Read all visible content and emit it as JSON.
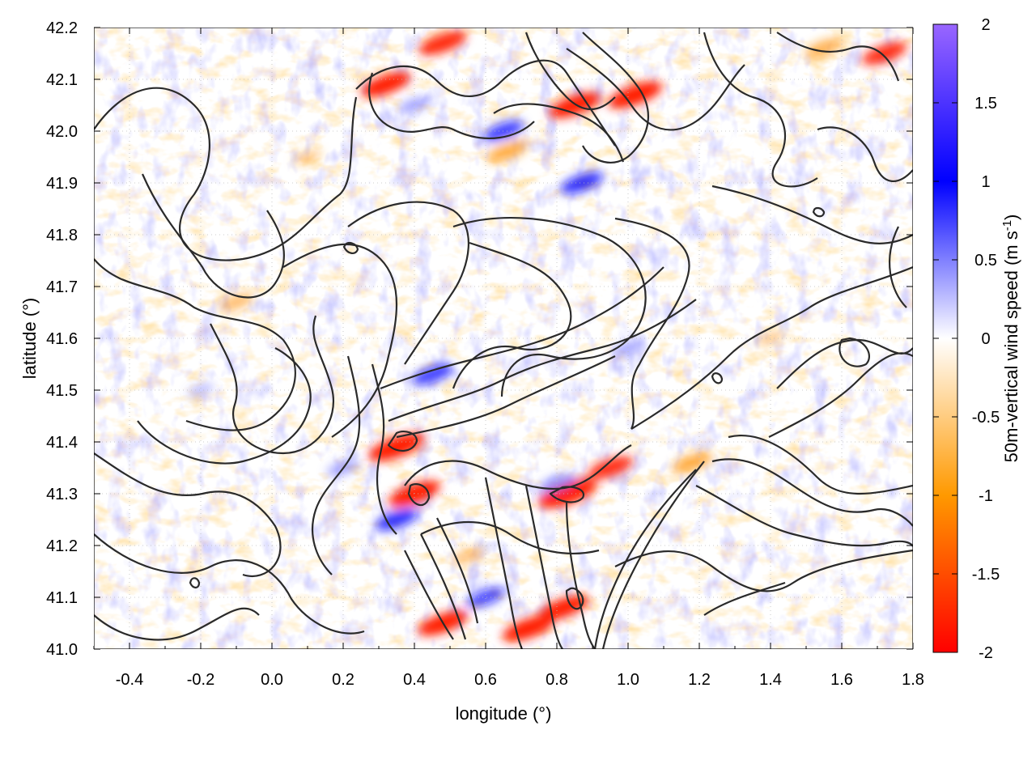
{
  "chart_data": {
    "type": "heatmap",
    "title": "",
    "xlabel": "longitude (°)",
    "ylabel": "latitude (°)",
    "xlim": [
      -0.5,
      1.8
    ],
    "ylim": [
      41.0,
      42.2
    ],
    "xticks": [
      "-0.4",
      "-0.2",
      "0.0",
      "0.2",
      "0.4",
      "0.6",
      "0.8",
      "1.0",
      "1.2",
      "1.4",
      "1.6",
      "1.8"
    ],
    "yticks": [
      "41.0",
      "41.1",
      "41.2",
      "41.3",
      "41.4",
      "41.5",
      "41.6",
      "41.7",
      "41.8",
      "41.9",
      "42.0",
      "42.1",
      "42.2"
    ],
    "grid": true,
    "colorbar": {
      "label_main": "50m-vertical wind speed (m s",
      "label_sup": "-1",
      "label_close": ")",
      "range": [
        -2,
        2
      ],
      "ticks": [
        "2",
        "1.5",
        "1",
        "0.5",
        "0",
        "-0.5",
        "-1",
        "-1.5",
        "-2"
      ],
      "colors": [
        "#ff0000",
        "#ff9900",
        "#ffffff",
        "#0000ff",
        "#9966ff"
      ]
    },
    "contours": "terrain height isolines (black)",
    "features": [
      {
        "lon": 0.32,
        "lat": 42.09,
        "w": -1.6
      },
      {
        "lon": 0.48,
        "lat": 42.17,
        "w": -1.5
      },
      {
        "lon": 0.85,
        "lat": 42.05,
        "w": -1.7
      },
      {
        "lon": 1.02,
        "lat": 42.07,
        "w": -1.8
      },
      {
        "lon": 0.66,
        "lat": 41.96,
        "w": -1.2
      },
      {
        "lon": 1.55,
        "lat": 42.16,
        "w": -1.1
      },
      {
        "lon": 1.72,
        "lat": 42.15,
        "w": -1.4
      },
      {
        "lon": 0.35,
        "lat": 41.39,
        "w": -1.9
      },
      {
        "lon": 0.4,
        "lat": 41.3,
        "w": -1.7
      },
      {
        "lon": 0.83,
        "lat": 41.3,
        "w": -2.0
      },
      {
        "lon": 0.95,
        "lat": 41.35,
        "w": -1.4
      },
      {
        "lon": 1.18,
        "lat": 41.36,
        "w": -1.2
      },
      {
        "lon": 0.82,
        "lat": 41.08,
        "w": -1.6
      },
      {
        "lon": 0.48,
        "lat": 41.05,
        "w": -1.6
      },
      {
        "lon": 0.72,
        "lat": 41.04,
        "w": -1.7
      },
      {
        "lon": 0.55,
        "lat": 41.18,
        "w": -0.8
      },
      {
        "lon": -0.1,
        "lat": 41.67,
        "w": -0.9
      },
      {
        "lon": 0.1,
        "lat": 41.95,
        "w": -0.6
      },
      {
        "lon": 1.4,
        "lat": 41.6,
        "w": -0.6
      },
      {
        "lon": 0.45,
        "lat": 41.53,
        "w": 1.2
      },
      {
        "lon": 0.35,
        "lat": 41.25,
        "w": 1.3
      },
      {
        "lon": 0.6,
        "lat": 41.1,
        "w": 1.1
      },
      {
        "lon": 0.65,
        "lat": 42.0,
        "w": 1.2
      },
      {
        "lon": 0.87,
        "lat": 41.9,
        "w": 1.3
      },
      {
        "lon": 0.8,
        "lat": 41.32,
        "w": 1.0
      },
      {
        "lon": 1.0,
        "lat": 41.58,
        "w": 0.8
      },
      {
        "lon": 0.2,
        "lat": 41.35,
        "w": 0.8
      },
      {
        "lon": -0.2,
        "lat": 41.5,
        "w": 0.5
      },
      {
        "lon": 0.4,
        "lat": 42.05,
        "w": 0.8
      }
    ]
  }
}
